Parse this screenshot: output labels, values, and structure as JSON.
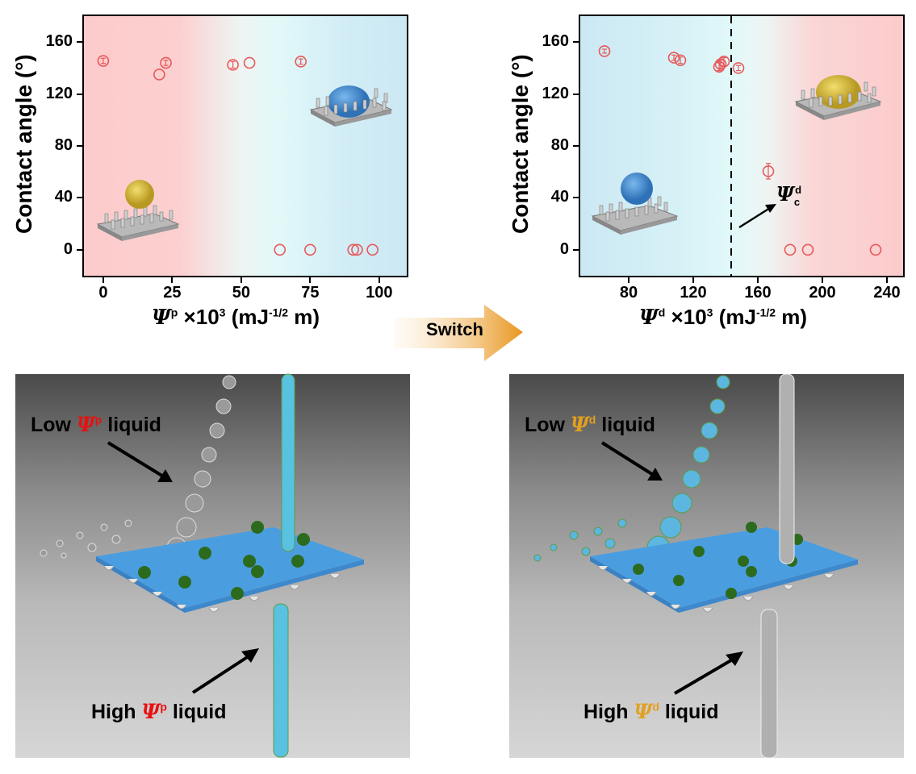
{
  "chart_data": [
    {
      "type": "scatter",
      "title": "",
      "xlabel_symbol": "Ψ",
      "xlabel_sup": "p",
      "xlabel_rest": "×10",
      "xlabel_exp": "3",
      "xlabel_unit_a": "(mJ",
      "xlabel_unit_exp": "-1/2",
      "xlabel_unit_b": "m)",
      "ylabel": "Contact angle (°)",
      "xlim": [
        -7,
        110
      ],
      "ylim": [
        -20,
        180
      ],
      "xticks": [
        "0",
        "25",
        "50",
        "75",
        "100"
      ],
      "yticks": [
        "0",
        "40",
        "80",
        "120",
        "160"
      ],
      "marker": "open circle",
      "marker_color": "#e8585a",
      "background": "gradient red (low Ψp) to blue (high Ψp)",
      "points": [
        {
          "x": 0,
          "y": 145.5,
          "err": 2
        },
        {
          "x": 20.3,
          "y": 135,
          "err": 0
        },
        {
          "x": 22.7,
          "y": 144,
          "err": 2
        },
        {
          "x": 47,
          "y": 142.5,
          "err": 2.5
        },
        {
          "x": 53,
          "y": 144,
          "err": 0
        },
        {
          "x": 71.6,
          "y": 145,
          "err": 2
        },
        {
          "x": 64,
          "y": 0,
          "err": 0
        },
        {
          "x": 75,
          "y": 0,
          "err": 0
        },
        {
          "x": 90.6,
          "y": 0,
          "err": 0
        },
        {
          "x": 92,
          "y": 0,
          "err": 0
        },
        {
          "x": 97.6,
          "y": 0,
          "err": 0
        }
      ],
      "insets": [
        {
          "label": "yellow droplet on pillars (repelled)",
          "region": "low Ψp"
        },
        {
          "label": "blue droplet spreading into pillars (wetting)",
          "region": "high Ψp"
        }
      ]
    },
    {
      "type": "scatter",
      "title": "",
      "xlabel_symbol": "Ψ",
      "xlabel_sup": "d",
      "xlabel_rest": "×10",
      "xlabel_exp": "3",
      "xlabel_unit_a": "(mJ",
      "xlabel_unit_exp": "-1/2",
      "xlabel_unit_b": "m)",
      "ylabel": "Contact angle (°)",
      "xlim": [
        50,
        250
      ],
      "ylim": [
        -20,
        180
      ],
      "xticks": [
        "80",
        "120",
        "160",
        "200",
        "240"
      ],
      "yticks": [
        "0",
        "40",
        "80",
        "120",
        "160"
      ],
      "marker": "open circle",
      "marker_color": "#e8585a",
      "critical_line_x": 143.5,
      "annotation": {
        "symbol": "Ψ",
        "sub": "c",
        "sup": "d"
      },
      "points": [
        {
          "x": 65,
          "y": 153,
          "err": 1.5
        },
        {
          "x": 108,
          "y": 148,
          "err": 2
        },
        {
          "x": 112,
          "y": 146,
          "err": 2.5
        },
        {
          "x": 136,
          "y": 141,
          "err": 3
        },
        {
          "x": 137,
          "y": 143,
          "err": 3
        },
        {
          "x": 139,
          "y": 145,
          "err": 3
        },
        {
          "x": 148,
          "y": 140,
          "err": 2
        },
        {
          "x": 166.5,
          "y": 60.5,
          "err": 6
        },
        {
          "x": 180,
          "y": 0,
          "err": 0
        },
        {
          "x": 191,
          "y": 0,
          "err": 0
        },
        {
          "x": 233,
          "y": 0,
          "err": 0
        }
      ],
      "insets": [
        {
          "label": "blue droplet on pillars (repelled)",
          "region": "low Ψd"
        },
        {
          "label": "yellow droplet spreading into pillars (wetting)",
          "region": "high Ψd"
        }
      ]
    }
  ],
  "switch_arrow": {
    "label": "Switch",
    "color": "#e8961e"
  },
  "panels": {
    "left": {
      "top_label": {
        "pre": "Low ",
        "symbol": "Ψ",
        "sup": "p",
        "post": " liquid",
        "symbol_color": "#e81010"
      },
      "bottom_label": {
        "pre": "High ",
        "symbol": "Ψ",
        "sup": "p",
        "post": " liquid",
        "symbol_color": "#e81010"
      }
    },
    "right": {
      "top_label": {
        "pre": "Low ",
        "symbol": "Ψ",
        "sup": "d",
        "post": " liquid",
        "symbol_color": "#e2a020"
      },
      "bottom_label": {
        "pre": "High ",
        "symbol": "Ψ",
        "sup": "d",
        "post": " liquid",
        "symbol_color": "#e2a020"
      }
    }
  }
}
